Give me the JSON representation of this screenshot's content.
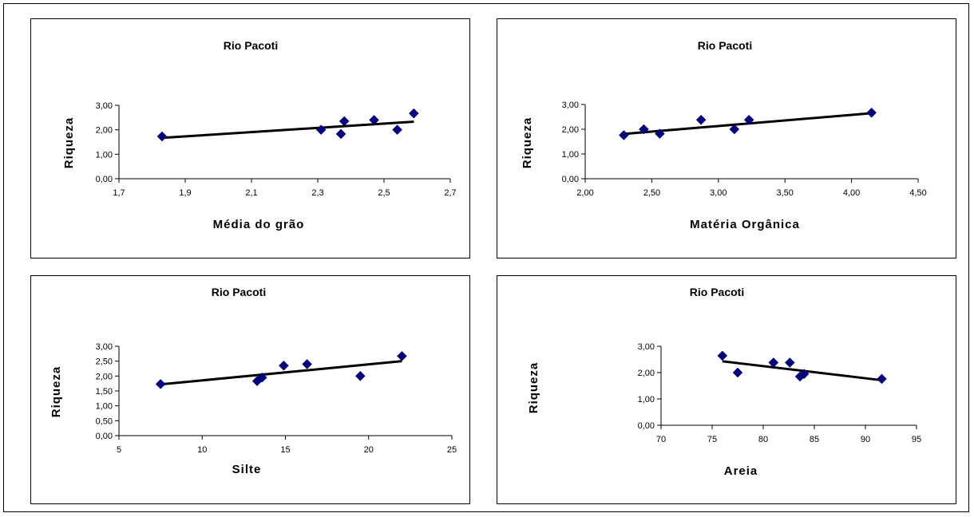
{
  "chart_data": [
    {
      "type": "scatter",
      "title": "Rio Pacoti",
      "xlabel": "Média do grão",
      "ylabel": "Riqueza",
      "xlim": [
        1.7,
        2.7
      ],
      "ylim": [
        0,
        3
      ],
      "xticks": [
        "1,7",
        "1,9",
        "2,1",
        "2,3",
        "2,5",
        "2,7"
      ],
      "yticks": [
        "0,00",
        "1,00",
        "2,00",
        "3,00"
      ],
      "grid": false,
      "legend": "none",
      "marker_color": "#000080",
      "points": [
        {
          "x": 1.83,
          "y": 1.73
        },
        {
          "x": 2.31,
          "y": 2.0
        },
        {
          "x": 2.37,
          "y": 1.83
        },
        {
          "x": 2.38,
          "y": 2.35
        },
        {
          "x": 2.47,
          "y": 2.4
        },
        {
          "x": 2.54,
          "y": 2.0
        },
        {
          "x": 2.59,
          "y": 2.67
        }
      ],
      "trendline": {
        "x": [
          1.83,
          2.59
        ],
        "y": [
          1.67,
          2.33
        ]
      }
    },
    {
      "type": "scatter",
      "title": "Rio Pacoti",
      "xlabel": "Matéria Orgânica",
      "ylabel": "Riqueza",
      "xlim": [
        2.0,
        4.5
      ],
      "ylim": [
        0,
        3
      ],
      "xticks": [
        "2,00",
        "2,50",
        "3,00",
        "3,50",
        "4,00",
        "4,50"
      ],
      "yticks": [
        "0,00",
        "1,00",
        "2,00",
        "3,00"
      ],
      "grid": false,
      "legend": "none",
      "marker_color": "#000080",
      "points": [
        {
          "x": 2.29,
          "y": 1.76
        },
        {
          "x": 2.44,
          "y": 2.0
        },
        {
          "x": 2.56,
          "y": 1.82
        },
        {
          "x": 2.87,
          "y": 2.38
        },
        {
          "x": 3.12,
          "y": 2.0
        },
        {
          "x": 3.23,
          "y": 2.38
        },
        {
          "x": 4.15,
          "y": 2.67
        }
      ],
      "trendline": {
        "x": [
          2.29,
          4.15
        ],
        "y": [
          1.81,
          2.65
        ]
      }
    },
    {
      "type": "scatter",
      "title": "Rio Pacoti",
      "xlabel": "Silte",
      "ylabel": "Riqueza",
      "xlim": [
        5,
        25
      ],
      "ylim": [
        0,
        3
      ],
      "xticks": [
        "5",
        "10",
        "15",
        "20",
        "25"
      ],
      "yticks": [
        "0,00",
        "0,50",
        "1,00",
        "1,50",
        "2,00",
        "2,50",
        "3,00"
      ],
      "grid": false,
      "legend": "none",
      "marker_color": "#000080",
      "points": [
        {
          "x": 7.5,
          "y": 1.73
        },
        {
          "x": 13.3,
          "y": 1.83
        },
        {
          "x": 13.6,
          "y": 1.95
        },
        {
          "x": 14.9,
          "y": 2.35
        },
        {
          "x": 16.3,
          "y": 2.4
        },
        {
          "x": 19.5,
          "y": 2.0
        },
        {
          "x": 22.0,
          "y": 2.67
        }
      ],
      "trendline": {
        "x": [
          7.5,
          22.0
        ],
        "y": [
          1.72,
          2.5
        ]
      }
    },
    {
      "type": "scatter",
      "title": "Rio Pacoti",
      "xlabel": "Areia",
      "ylabel": "Riqueza",
      "xlim": [
        70,
        95
      ],
      "ylim": [
        0,
        3
      ],
      "xticks": [
        "70",
        "75",
        "80",
        "85",
        "90",
        "95"
      ],
      "yticks": [
        "0,00",
        "1,00",
        "2,00",
        "3,00"
      ],
      "grid": false,
      "legend": "none",
      "marker_color": "#000080",
      "points": [
        {
          "x": 76.0,
          "y": 2.64
        },
        {
          "x": 77.5,
          "y": 2.0
        },
        {
          "x": 81.0,
          "y": 2.38
        },
        {
          "x": 82.6,
          "y": 2.38
        },
        {
          "x": 83.6,
          "y": 1.85
        },
        {
          "x": 84.0,
          "y": 1.95
        },
        {
          "x": 91.6,
          "y": 1.76
        }
      ],
      "trendline": {
        "x": [
          76.0,
          91.6
        ],
        "y": [
          2.43,
          1.71
        ]
      }
    }
  ]
}
